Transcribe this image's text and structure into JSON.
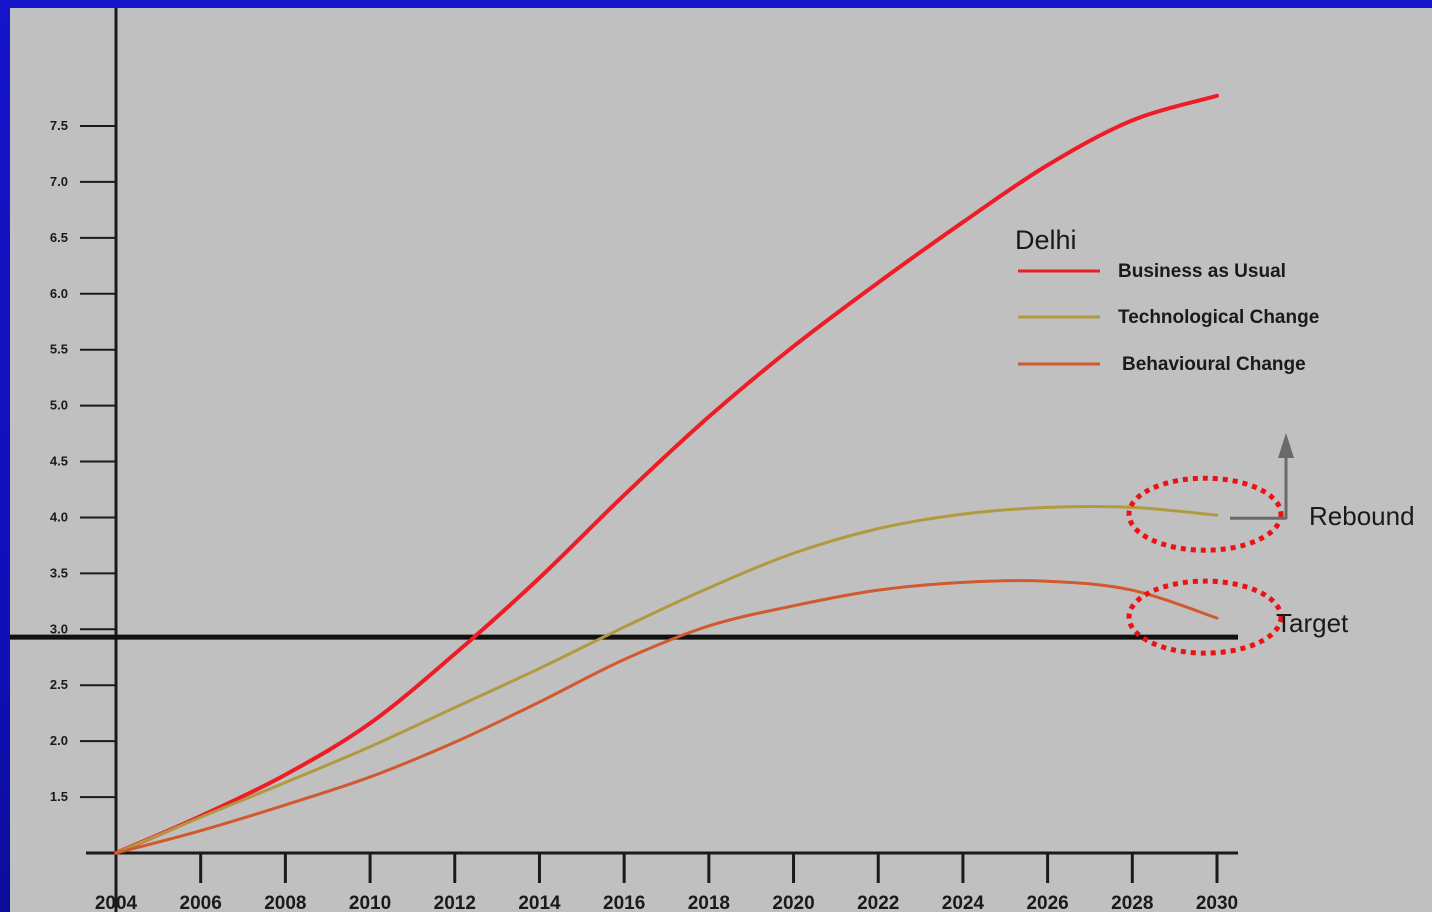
{
  "chart_data": {
    "type": "line",
    "title": "Delhi",
    "x": [
      2004,
      2006,
      2008,
      2010,
      2012,
      2014,
      2016,
      2018,
      2020,
      2022,
      2024,
      2026,
      2028,
      2030
    ],
    "xlim": [
      2004,
      2030
    ],
    "ylim": [
      1.0,
      7.5
    ],
    "y_ticks": [
      "7.5",
      "7.0",
      "6.5",
      "6.0",
      "5.5",
      "5.0",
      "4.5",
      "4.0",
      "3.5",
      "3.0",
      "2.5",
      "2.0",
      "1.5"
    ],
    "x_ticks": [
      "2004",
      "2006",
      "2008",
      "2010",
      "2012",
      "2014",
      "2016",
      "2018",
      "2020",
      "2022",
      "2024",
      "2026",
      "2028",
      "2030"
    ],
    "grid": false,
    "legend_position": "top-right",
    "target_value": 2.93,
    "series": [
      {
        "name": "Business as Usual",
        "color": "#ee1c25",
        "values": [
          1.0,
          1.33,
          1.7,
          2.16,
          2.78,
          3.46,
          4.2,
          4.9,
          5.53,
          6.1,
          6.64,
          7.15,
          7.55,
          7.77
        ]
      },
      {
        "name": "Technological Change",
        "color": "#b09a40",
        "values": [
          1.0,
          1.32,
          1.63,
          1.95,
          2.3,
          2.65,
          3.02,
          3.37,
          3.68,
          3.9,
          4.03,
          4.09,
          4.09,
          4.02
        ]
      },
      {
        "name": "Behavioural Change",
        "color": "#d2582e",
        "values": [
          1.0,
          1.2,
          1.43,
          1.68,
          1.99,
          2.35,
          2.73,
          3.03,
          3.21,
          3.35,
          3.42,
          3.43,
          3.35,
          3.1
        ]
      }
    ],
    "annotations": [
      {
        "text": "Rebound",
        "series": "Technological Change"
      },
      {
        "text": "Target",
        "series": "Behavioural Change"
      }
    ]
  }
}
